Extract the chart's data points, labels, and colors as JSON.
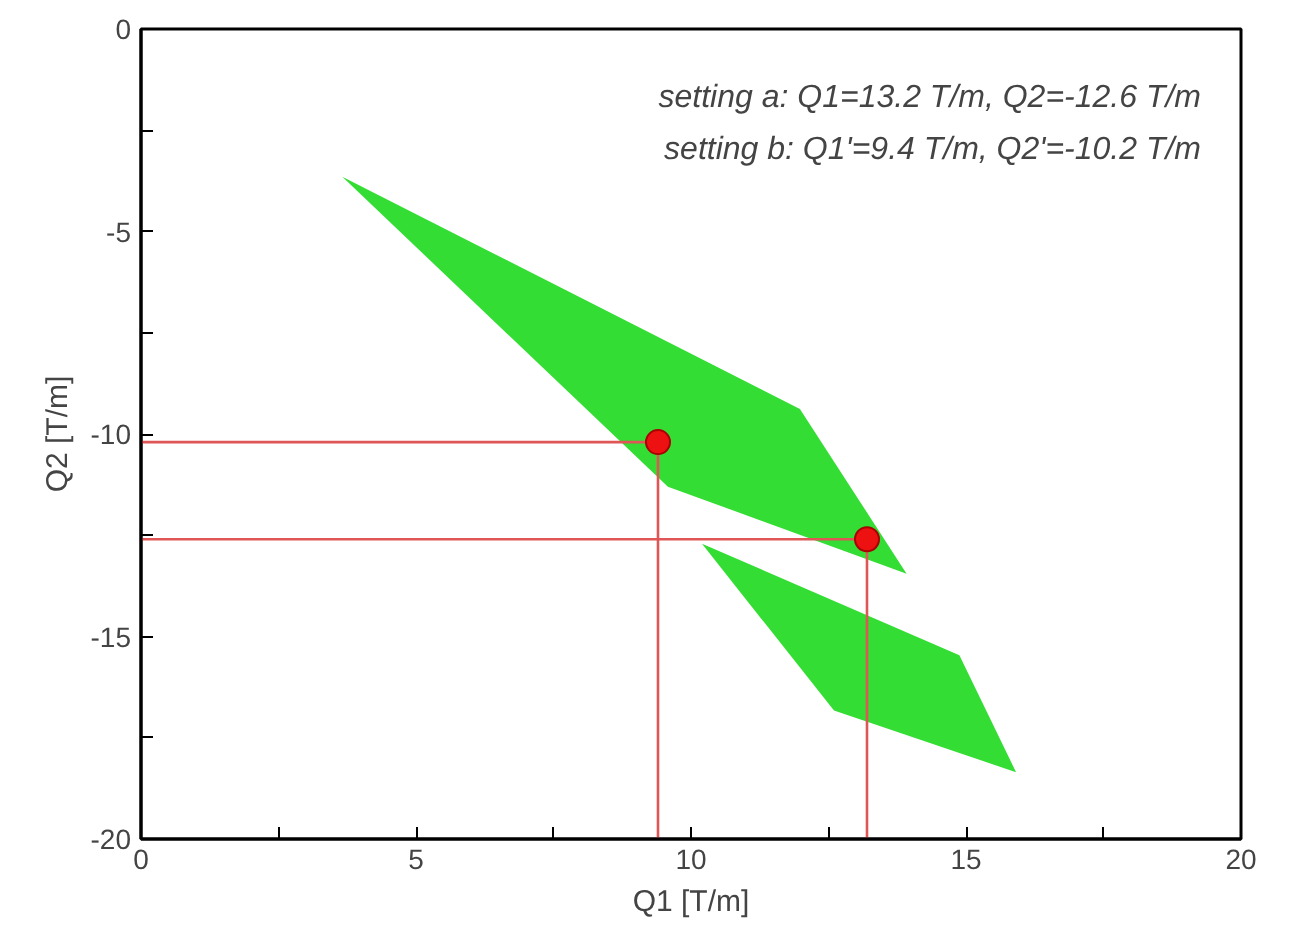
{
  "chart_data": {
    "type": "scatter",
    "xlabel": "Q1 [T/m]",
    "ylabel": "Q2 [T/m]",
    "annotations": [
      "setting a: Q1=13.2 T/m, Q2=-12.6 T/m",
      "setting b: Q1'=9.4 T/m, Q2'=-10.2 T/m"
    ],
    "xlim": [
      0,
      20
    ],
    "ylim": [
      -20,
      0
    ],
    "xticks": [
      0,
      {
        "value": 2.5,
        "label": null
      },
      5,
      {
        "value": 7.5,
        "label": null
      },
      10,
      {
        "value": 12.5,
        "label": null
      },
      15,
      {
        "value": 17.5,
        "label": null
      },
      20
    ],
    "yticks": [
      -20,
      {
        "value": -17.5,
        "label": null
      },
      -15,
      {
        "value": -12.5,
        "label": null
      },
      -10,
      {
        "value": -7.5,
        "label": null
      },
      -5,
      {
        "value": -2.5,
        "label": null
      },
      0
    ],
    "grid": false,
    "series": [
      {
        "type": "area",
        "color": "#33dd33",
        "x": [
          3.66,
          11.98,
          13.92,
          9.58
        ],
        "values": [
          -3.65,
          -9.38,
          -13.45,
          -11.3
        ]
      },
      {
        "type": "area",
        "color": "#33dd33",
        "x": [
          10.2,
          14.88,
          15.91,
          12.6
        ],
        "values": [
          -12.71,
          -15.46,
          -18.35,
          -16.83
        ]
      },
      {
        "type": "line",
        "color": "#e05555",
        "x": [
          0,
          9.4,
          9.4
        ],
        "values": [
          -10.2,
          -10.2,
          -20
        ]
      },
      {
        "type": "line",
        "color": "#e05555",
        "x": [
          0,
          13.2,
          13.2
        ],
        "values": [
          -12.6,
          -12.6,
          -20
        ]
      },
      {
        "color": "#ee1111",
        "marker": "circle",
        "x": [
          9.4,
          13.2
        ],
        "values": [
          -10.2,
          -12.6
        ]
      }
    ]
  }
}
